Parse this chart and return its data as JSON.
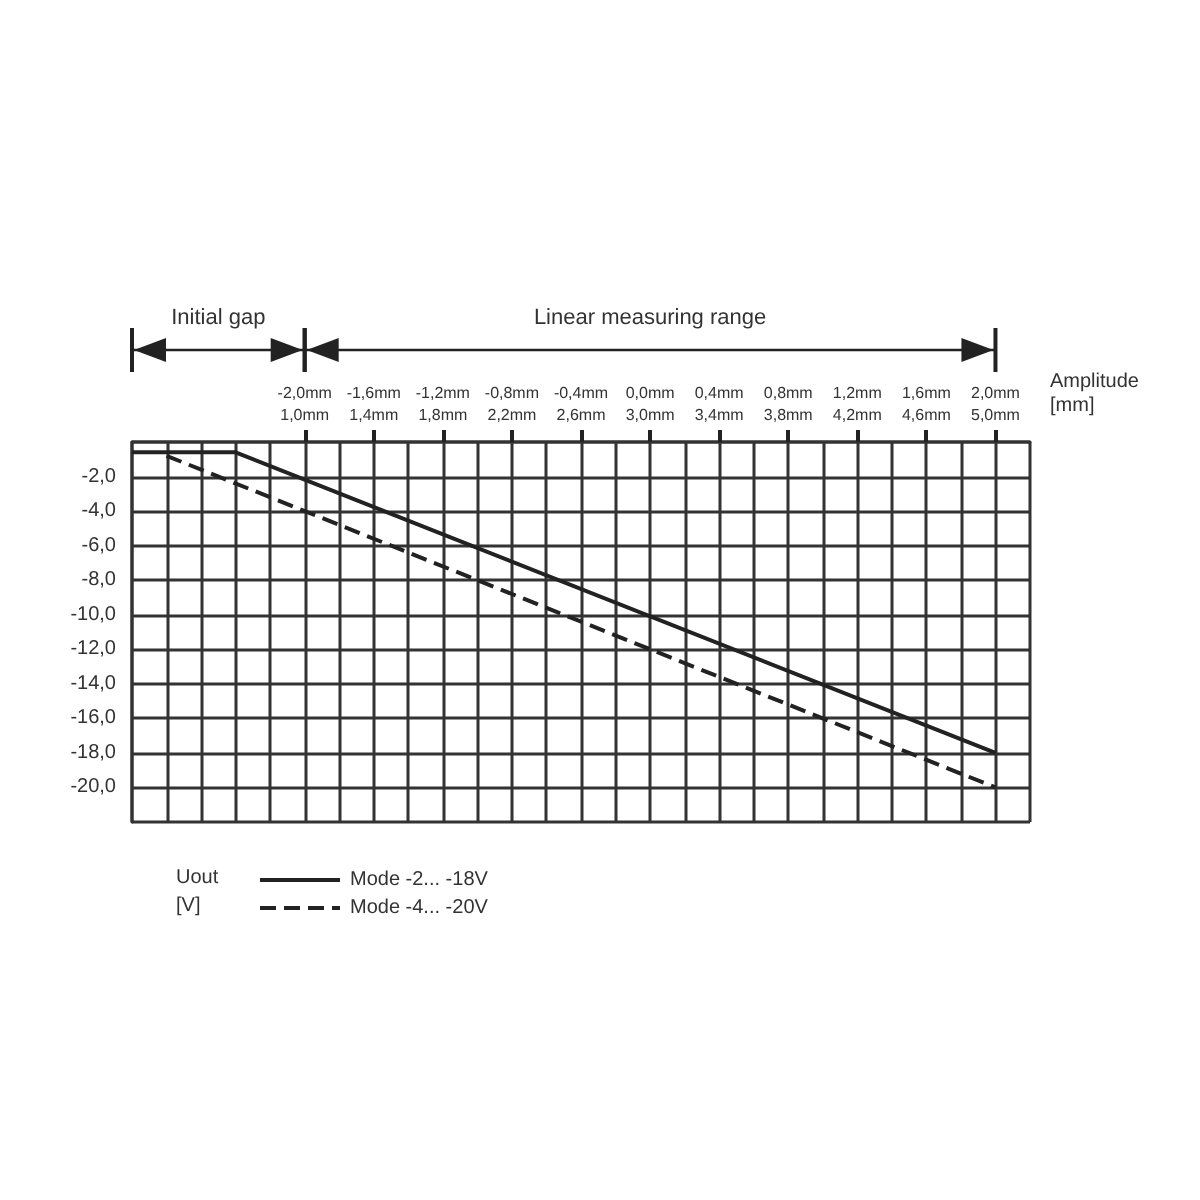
{
  "chart_data": {
    "type": "line",
    "xlabel": "Amplitude [mm]",
    "legend_title": "Uout [V]",
    "categories": [
      null,
      null,
      null,
      null,
      null,
      "-2,0mm\n1,0mm",
      null,
      "-1,6mm\n1,4mm",
      null,
      "-1,2mm\n1,8mm",
      null,
      "-0,8mm\n2,2mm",
      null,
      "-0,4mm\n2,6mm",
      null,
      "0,0mm\n3,0mm",
      null,
      "0,4mm\n3,4mm",
      null,
      "0,8mm\n3,8mm",
      null,
      "1,2mm\n4,2mm",
      null,
      "1,6mm\n4,6mm",
      null,
      "2,0mm\n5,0mm",
      null
    ],
    "series": [
      {
        "name": "Mode -2... -18V",
        "color": "#222222",
        "line_style": "solid",
        "values": [
          -0.6,
          null,
          null,
          -0.6,
          null,
          null,
          null,
          null,
          null,
          null,
          null,
          null,
          null,
          null,
          null,
          null,
          null,
          null,
          null,
          null,
          null,
          null,
          null,
          null,
          null,
          -18,
          null
        ]
      },
      {
        "name": "Mode -4... -20V",
        "color": "#222222",
        "line_style": "dashed",
        "values": [
          null,
          -0.8,
          null,
          null,
          null,
          null,
          null,
          null,
          null,
          null,
          null,
          null,
          null,
          null,
          null,
          null,
          null,
          null,
          null,
          null,
          null,
          null,
          null,
          null,
          null,
          -20,
          null
        ]
      }
    ],
    "ylim": [
      -22,
      0
    ],
    "yticks": [
      {
        "value": -22,
        "label": null
      },
      {
        "value": -20,
        "label": "-20,0"
      },
      {
        "value": -18,
        "label": "-18,0"
      },
      {
        "value": -16,
        "label": "-16,0"
      },
      {
        "value": -14,
        "label": "-14,0"
      },
      {
        "value": -12,
        "label": "-12,0"
      },
      {
        "value": -10,
        "label": "-10,0"
      },
      {
        "value": -8,
        "label": "-8,0"
      },
      {
        "value": -6,
        "label": "-6,0"
      },
      {
        "value": -4,
        "label": "-4,0"
      },
      {
        "value": -2,
        "label": "-2,0"
      },
      {
        "value": 0,
        "label": null
      }
    ],
    "annotations": [
      "Initial gap",
      "Linear measuring range"
    ],
    "grid": true,
    "legend": "bottom left"
  }
}
